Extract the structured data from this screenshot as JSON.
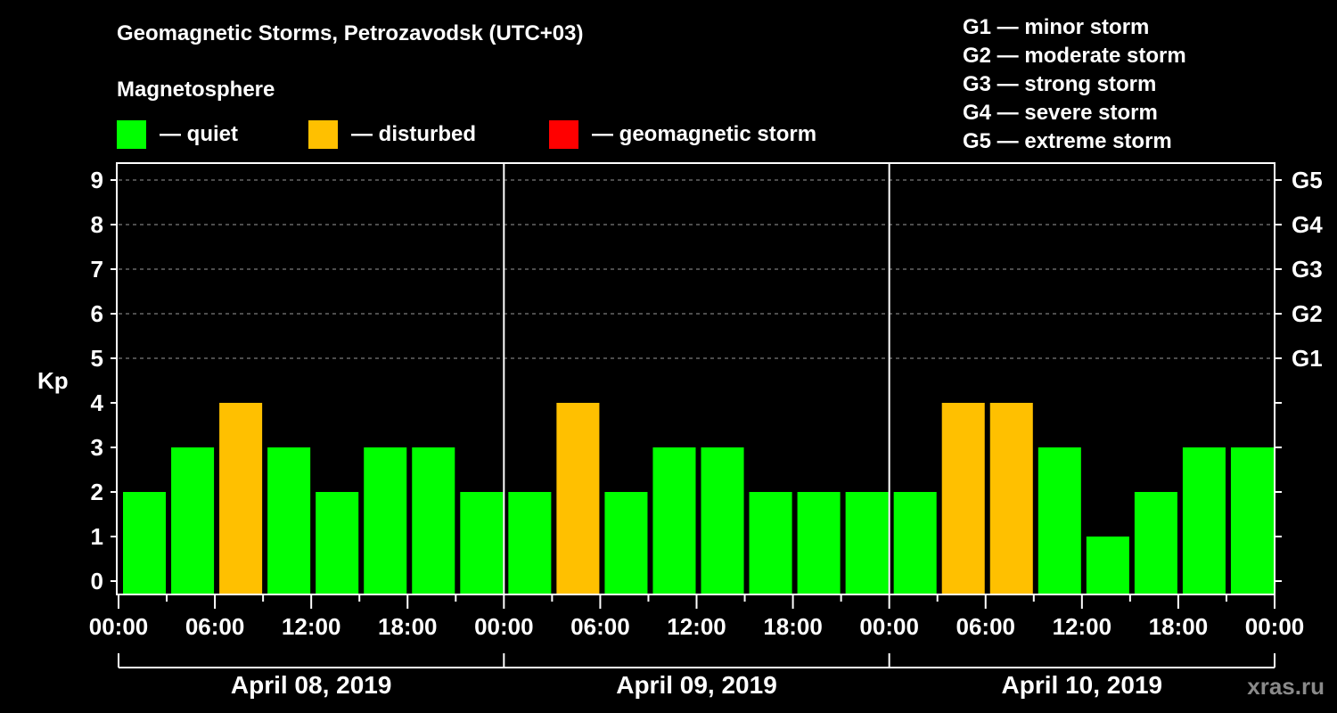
{
  "header": {
    "title": "Geomagnetic Storms, Petrozavodsk (UTC+03)",
    "subtitle": "Magnetosphere"
  },
  "legend": [
    {
      "label": "— quiet",
      "color": "#00ff00"
    },
    {
      "label": "— disturbed",
      "color": "#ffc000"
    },
    {
      "label": "— geomagnetic storm",
      "color": "#ff0000"
    }
  ],
  "g_scale": [
    "G1 — minor storm",
    "G2 — moderate storm",
    "G3 — strong storm",
    "G4 — severe storm",
    "G5 — extreme storm"
  ],
  "watermark": "xras.ru",
  "chart_data": {
    "type": "bar",
    "title": "Geomagnetic Storms, Petrozavodsk (UTC+03)",
    "subtitle": "Magnetosphere",
    "ylabel": "Kp",
    "ylim": [
      0,
      9
    ],
    "yticks": [
      0,
      1,
      2,
      3,
      4,
      5,
      6,
      7,
      8,
      9
    ],
    "right_axis": {
      "labels": [
        "G1",
        "G2",
        "G3",
        "G4",
        "G5"
      ],
      "at_kp": [
        5,
        6,
        7,
        8,
        9
      ]
    },
    "grid": "dashed horizontal lines at Kp 5-9",
    "x_tick_labels": [
      "00:00",
      "06:00",
      "12:00",
      "18:00",
      "00:00",
      "06:00",
      "12:00",
      "18:00",
      "00:00",
      "06:00",
      "12:00",
      "18:00",
      "00:00"
    ],
    "days": [
      "April 08, 2019",
      "April 09, 2019",
      "April 10, 2019"
    ],
    "interval_hours": 3,
    "categories": [
      "Apr 08 00-03",
      "Apr 08 03-06",
      "Apr 08 06-09",
      "Apr 08 09-12",
      "Apr 08 12-15",
      "Apr 08 15-18",
      "Apr 08 18-21",
      "Apr 08 21-24",
      "Apr 09 00-03",
      "Apr 09 03-06",
      "Apr 09 06-09",
      "Apr 09 09-12",
      "Apr 09 12-15",
      "Apr 09 15-18",
      "Apr 09 18-21",
      "Apr 09 21-24",
      "Apr 10 00-03",
      "Apr 10 03-06",
      "Apr 10 06-09",
      "Apr 10 09-12",
      "Apr 10 12-15",
      "Apr 10 15-18",
      "Apr 10 18-21",
      "Apr 10 21-24"
    ],
    "values": [
      2,
      3,
      4,
      3,
      2,
      3,
      3,
      2,
      2,
      4,
      2,
      3,
      3,
      2,
      2,
      2,
      2,
      4,
      4,
      3,
      1,
      2,
      3,
      3
    ],
    "status": [
      "quiet",
      "quiet",
      "disturbed",
      "quiet",
      "quiet",
      "quiet",
      "quiet",
      "quiet",
      "quiet",
      "disturbed",
      "quiet",
      "quiet",
      "quiet",
      "quiet",
      "quiet",
      "quiet",
      "quiet",
      "disturbed",
      "disturbed",
      "quiet",
      "quiet",
      "quiet",
      "quiet",
      "quiet"
    ],
    "colors": {
      "quiet": "#00ff00",
      "disturbed": "#ffc000",
      "storm": "#ff0000"
    }
  }
}
